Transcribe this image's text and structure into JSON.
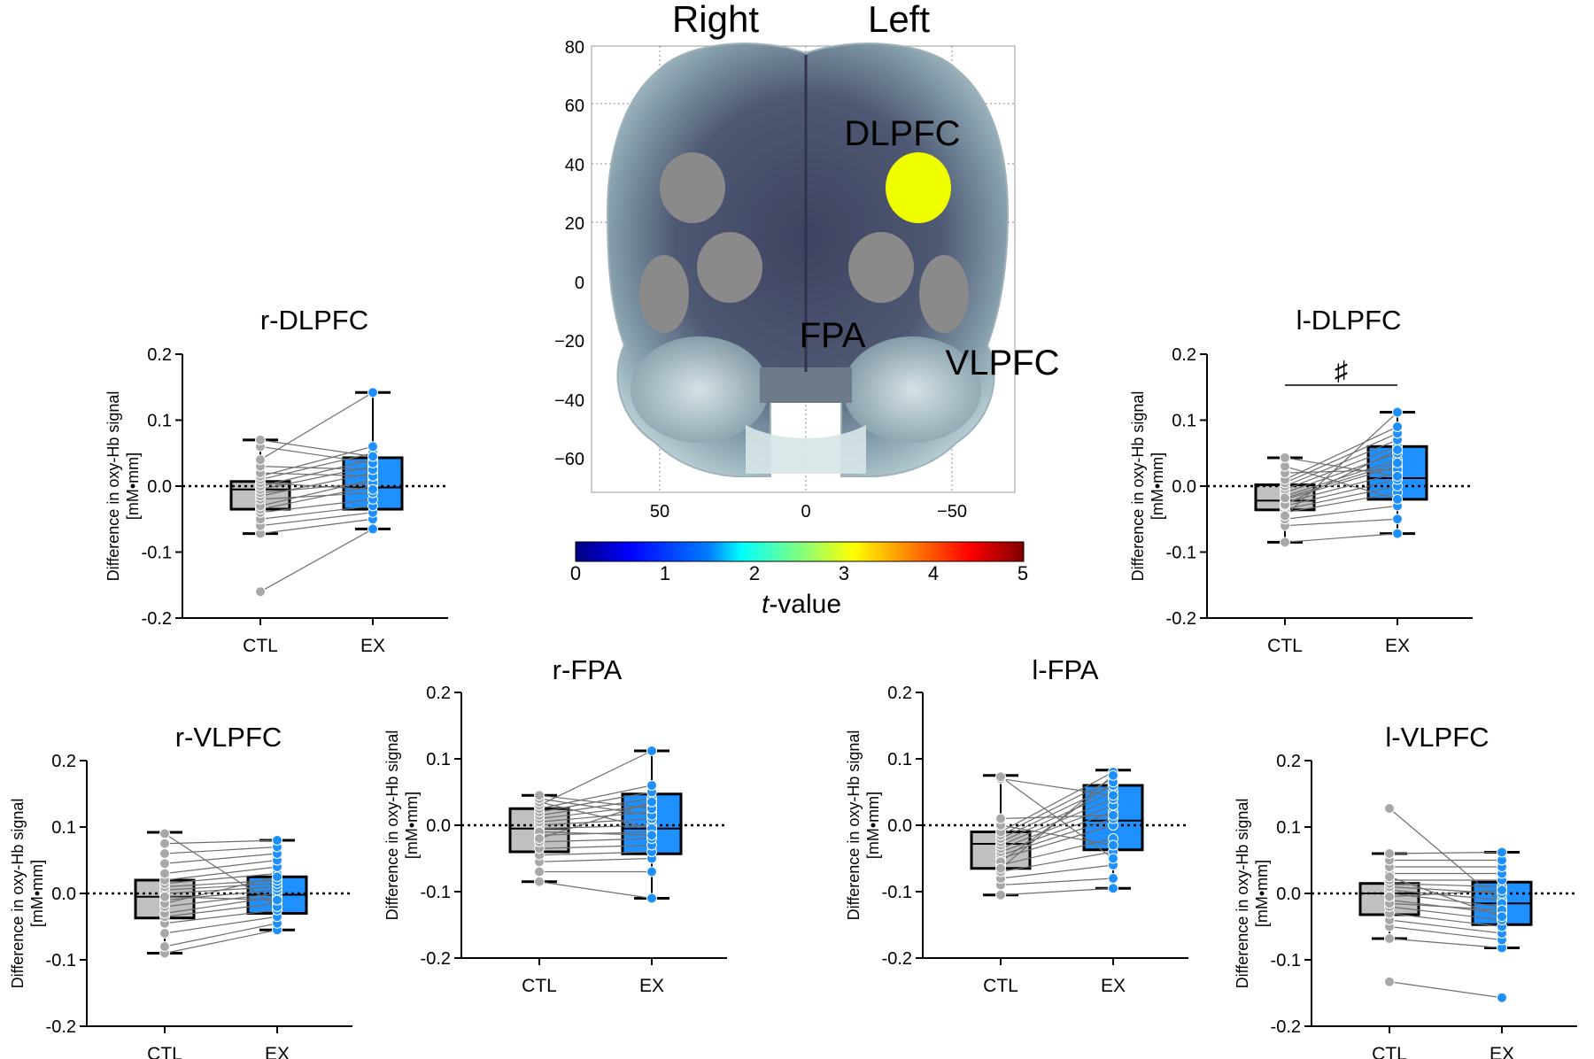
{
  "brain": {
    "label_right": "Right",
    "label_left": "Left",
    "region_labels": [
      "DLPFC",
      "FPA",
      "VLPFC"
    ],
    "yticks": [
      "80",
      "60",
      "40",
      "20",
      "0",
      "−20",
      "−40",
      "−60"
    ],
    "xticks": [
      "50",
      "0",
      "−50"
    ],
    "colorbar": {
      "ticks": [
        "0",
        "1",
        "2",
        "3",
        "4",
        "5"
      ],
      "label_italic": "t",
      "label_rest": "-value",
      "colors": [
        "#00007f",
        "#0000ff",
        "#0080ff",
        "#00ffff",
        "#80ff80",
        "#ffff00",
        "#ff8000",
        "#ff0000",
        "#7f0000"
      ]
    },
    "colors": {
      "gray_channel": "#8a8a8a",
      "significant_channel": "#f0ff00",
      "surface": "#4a4f6a"
    }
  },
  "chart_data": [
    {
      "type": "box",
      "title": "r-DLPFC",
      "ylabel": "Difference in oxy-Hb signal",
      "yunit": "[mM•mm]",
      "yticks": [
        "0.2",
        "0.1",
        "0.0",
        "-0.1",
        "-0.2"
      ],
      "ylim": [
        -0.2,
        0.2
      ],
      "categories": [
        "CTL",
        "EX"
      ],
      "colors": [
        "#c0c0c0",
        "#1e90ff"
      ],
      "sig": "",
      "boxes": [
        {
          "min": -0.072,
          "q1": -0.035,
          "median": -0.005,
          "q3": 0.007,
          "max": 0.07
        },
        {
          "min": -0.065,
          "q1": -0.035,
          "median": -0.002,
          "q3": 0.043,
          "max": 0.142
        }
      ],
      "ctl": [
        -0.16,
        -0.072,
        -0.06,
        -0.05,
        -0.04,
        -0.035,
        -0.03,
        -0.02,
        -0.015,
        -0.01,
        -0.005,
        0.0,
        0.005,
        0.01,
        0.015,
        0.02,
        0.03,
        0.04,
        0.06,
        0.07
      ],
      "ex": [
        -0.065,
        -0.05,
        -0.04,
        -0.03,
        -0.02,
        0.0,
        0.01,
        -0.01,
        0.02,
        0.005,
        0.03,
        0.04,
        -0.005,
        0.05,
        0.06,
        0.015,
        0.025,
        0.142,
        0.035,
        0.045
      ]
    },
    {
      "type": "box",
      "title": "l-DLPFC",
      "ylabel": "Difference in oxy-Hb signal",
      "yunit": "[mM•mm]",
      "yticks": [
        "0.2",
        "0.1",
        "0.0",
        "-0.1",
        "-0.2"
      ],
      "ylim": [
        -0.2,
        0.2
      ],
      "categories": [
        "CTL",
        "EX"
      ],
      "colors": [
        "#c0c0c0",
        "#1e90ff"
      ],
      "sig": "♯",
      "boxes": [
        {
          "min": -0.085,
          "q1": -0.036,
          "median": -0.022,
          "q3": 0.002,
          "max": 0.043
        },
        {
          "min": -0.072,
          "q1": -0.02,
          "median": 0.012,
          "q3": 0.06,
          "max": 0.112
        }
      ],
      "ctl": [
        -0.085,
        -0.06,
        -0.05,
        -0.04,
        -0.035,
        -0.03,
        -0.025,
        -0.02,
        -0.015,
        -0.01,
        -0.005,
        0.0,
        0.005,
        0.01,
        -0.045,
        0.02,
        0.03,
        0.043,
        -0.028,
        -0.018
      ],
      "ex": [
        -0.072,
        -0.05,
        -0.03,
        -0.01,
        0.0,
        0.01,
        0.02,
        0.03,
        0.04,
        0.05,
        0.06,
        0.07,
        0.08,
        0.09,
        0.112,
        0.025,
        -0.02,
        0.015,
        0.055,
        0.035
      ]
    },
    {
      "type": "box",
      "title": "r-VLPFC",
      "ylabel": "Difference in oxy-Hb signal",
      "yunit": "[mM•mm]",
      "yticks": [
        "0.2",
        "0.1",
        "0.0",
        "-0.1",
        "-0.2"
      ],
      "ylim": [
        -0.2,
        0.2
      ],
      "categories": [
        "CTL",
        "EX"
      ],
      "colors": [
        "#c0c0c0",
        "#1e90ff"
      ],
      "sig": "",
      "boxes": [
        {
          "min": -0.09,
          "q1": -0.037,
          "median": -0.005,
          "q3": 0.02,
          "max": 0.092
        },
        {
          "min": -0.055,
          "q1": -0.03,
          "median": -0.002,
          "q3": 0.025,
          "max": 0.08
        }
      ],
      "ctl": [
        -0.09,
        -0.08,
        -0.06,
        -0.045,
        -0.035,
        -0.03,
        -0.02,
        -0.01,
        0.0,
        0.005,
        0.01,
        0.015,
        0.02,
        0.03,
        0.045,
        0.06,
        0.075,
        0.09,
        -0.015,
        -0.005
      ],
      "ex": [
        -0.055,
        -0.045,
        -0.035,
        -0.025,
        -0.015,
        -0.005,
        0.0,
        0.005,
        0.01,
        0.015,
        0.02,
        0.03,
        0.04,
        0.05,
        0.06,
        0.07,
        0.08,
        -0.02,
        0.025,
        -0.01
      ]
    },
    {
      "type": "box",
      "title": "r-FPA",
      "ylabel": "Difference in oxy-Hb signal",
      "yunit": "[mM•mm]",
      "yticks": [
        "0.2",
        "0.1",
        "0.0",
        "-0.1",
        "-0.2"
      ],
      "ylim": [
        -0.2,
        0.2
      ],
      "categories": [
        "CTL",
        "EX"
      ],
      "colors": [
        "#c0c0c0",
        "#1e90ff"
      ],
      "sig": "",
      "boxes": [
        {
          "min": -0.085,
          "q1": -0.04,
          "median": -0.005,
          "q3": 0.025,
          "max": 0.045
        },
        {
          "min": -0.11,
          "q1": -0.043,
          "median": -0.005,
          "q3": 0.047,
          "max": 0.112
        }
      ],
      "ctl": [
        -0.085,
        -0.07,
        -0.055,
        -0.045,
        -0.035,
        -0.025,
        -0.015,
        -0.005,
        0.0,
        0.005,
        0.01,
        0.015,
        0.02,
        0.025,
        0.03,
        0.035,
        0.04,
        0.045,
        -0.01,
        -0.02
      ],
      "ex": [
        -0.11,
        -0.07,
        -0.05,
        -0.04,
        -0.03,
        -0.02,
        -0.01,
        0.0,
        0.01,
        0.02,
        0.03,
        0.04,
        0.05,
        0.06,
        0.112,
        -0.005,
        0.015,
        0.025,
        -0.015,
        0.035
      ]
    },
    {
      "type": "box",
      "title": "l-FPA",
      "ylabel": "Difference in oxy-Hb signal",
      "yunit": "[mM•mm]",
      "yticks": [
        "0.2",
        "0.1",
        "0.0",
        "-0.1",
        "-0.2"
      ],
      "ylim": [
        -0.2,
        0.2
      ],
      "categories": [
        "CTL",
        "EX"
      ],
      "colors": [
        "#c0c0c0",
        "#1e90ff"
      ],
      "sig": "",
      "boxes": [
        {
          "min": -0.105,
          "q1": -0.065,
          "median": -0.028,
          "q3": -0.01,
          "max": 0.075
        },
        {
          "min": -0.095,
          "q1": -0.037,
          "median": 0.007,
          "q3": 0.06,
          "max": 0.083
        }
      ],
      "ctl": [
        -0.105,
        -0.09,
        -0.08,
        -0.07,
        -0.06,
        -0.05,
        -0.045,
        -0.04,
        -0.035,
        -0.03,
        -0.025,
        -0.02,
        -0.015,
        -0.01,
        0.0,
        0.01,
        0.07,
        -0.055,
        -0.065,
        0.073
      ],
      "ex": [
        -0.095,
        -0.08,
        -0.06,
        -0.04,
        -0.02,
        0.0,
        0.01,
        0.02,
        0.03,
        0.04,
        0.05,
        0.06,
        0.07,
        0.08,
        -0.03,
        0.015,
        0.045,
        0.065,
        0.075,
        -0.05
      ]
    },
    {
      "type": "box",
      "title": "l-VLPFC",
      "ylabel": "Difference in oxy-Hb signal",
      "yunit": "[mM•mm]",
      "yticks": [
        "0.2",
        "0.1",
        "0.0",
        "-0.1",
        "-0.2"
      ],
      "ylim": [
        -0.2,
        0.2
      ],
      "categories": [
        "CTL",
        "EX"
      ],
      "colors": [
        "#c0c0c0",
        "#1e90ff"
      ],
      "sig": "",
      "boxes": [
        {
          "min": -0.068,
          "q1": -0.032,
          "median": 0.0,
          "q3": 0.015,
          "max": 0.06
        },
        {
          "min": -0.082,
          "q1": -0.047,
          "median": -0.015,
          "q3": 0.017,
          "max": 0.062
        }
      ],
      "ctl": [
        -0.133,
        -0.068,
        -0.05,
        -0.04,
        -0.03,
        -0.02,
        -0.01,
        0.0,
        0.005,
        0.01,
        0.015,
        0.02,
        0.03,
        0.04,
        0.05,
        0.06,
        0.128,
        -0.015,
        -0.005,
        0.025
      ],
      "ex": [
        -0.157,
        -0.082,
        -0.07,
        -0.06,
        -0.05,
        -0.04,
        -0.03,
        -0.02,
        -0.01,
        0.0,
        0.01,
        0.02,
        0.03,
        0.04,
        0.05,
        0.062,
        -0.015,
        -0.025,
        0.005,
        -0.035
      ]
    }
  ]
}
